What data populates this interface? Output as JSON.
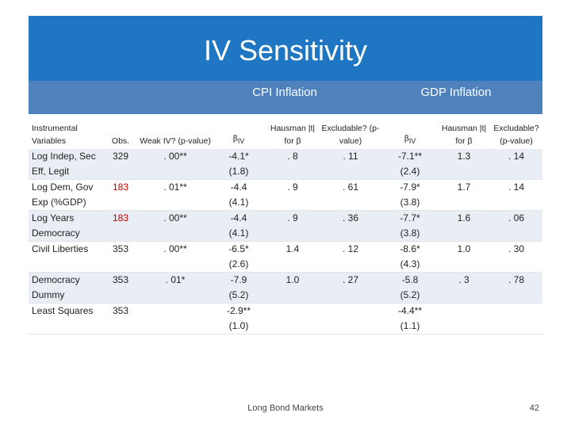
{
  "title": "IV Sensitivity",
  "groups": {
    "cpi": "CPI Inflation",
    "gdp": "GDP Inflation"
  },
  "headers": {
    "instruments": "Instrumental Variables",
    "obs": "Obs.",
    "weak_iv": "Weak IV? (p-value)",
    "beta": "β",
    "beta_sub": "IV",
    "hausman": "Hausman |t| for β",
    "excludable": "Excludable? (p-value)"
  },
  "rows": [
    {
      "inst": "Log Indep, Sec Eff, Legit",
      "obs": "329",
      "obs_red": false,
      "weak": ". 00**",
      "cpi_b": "-4.1*",
      "cpi_se": "(1.8)",
      "cpi_h": ". 8",
      "cpi_e": ". 11",
      "gdp_b": "-7.1**",
      "gdp_se": "(2.4)",
      "gdp_h": "1.3",
      "gdp_e": ". 14"
    },
    {
      "inst": "Log Dem, Gov Exp (%GDP)",
      "obs": "183",
      "obs_red": true,
      "weak": ". 01**",
      "cpi_b": "-4.4",
      "cpi_se": "(4.1)",
      "cpi_h": ". 9",
      "cpi_e": ". 61",
      "gdp_b": "-7.9*",
      "gdp_se": "(3.8)",
      "gdp_h": "1.7",
      "gdp_e": ". 14"
    },
    {
      "inst": "Log Years Democracy",
      "obs": "183",
      "obs_red": true,
      "weak": ". 00**",
      "cpi_b": "-4.4",
      "cpi_se": "(4.1)",
      "cpi_h": ". 9",
      "cpi_e": ". 36",
      "gdp_b": "-7.7*",
      "gdp_se": "(3.8)",
      "gdp_h": "1.6",
      "gdp_e": ". 06"
    },
    {
      "inst": "Civil Liberties",
      "obs": "353",
      "obs_red": false,
      "weak": ". 00**",
      "cpi_b": "-6.5*",
      "cpi_se": "(2.6)",
      "cpi_h": "1.4",
      "cpi_e": ". 12",
      "gdp_b": "-8.6*",
      "gdp_se": "(4.3)",
      "gdp_h": "1.0",
      "gdp_e": ". 30"
    },
    {
      "inst": "Democracy Dummy",
      "obs": "353",
      "obs_red": false,
      "weak": ". 01*",
      "cpi_b": "-7.9",
      "cpi_se": "(5.2)",
      "cpi_h": "1.0",
      "cpi_e": ". 27",
      "gdp_b": "-5.8",
      "gdp_se": "(5.2)",
      "gdp_h": ". 3",
      "gdp_e": ". 78"
    },
    {
      "inst": "Least Squares",
      "obs": "353",
      "obs_red": false,
      "weak": "",
      "cpi_b": "-2.9**",
      "cpi_se": "(1.0)",
      "cpi_h": "",
      "cpi_e": "",
      "gdp_b": "-4.4**",
      "gdp_se": "(1.1)",
      "gdp_h": "",
      "gdp_e": ""
    }
  ],
  "colors": {
    "title_bg": "#1f77c4",
    "group_bg": "#4f81bd",
    "row_band": "#e9edf4",
    "obs_highlight": "#c00000"
  },
  "footer": "Long Bond Markets",
  "page_number": "42"
}
